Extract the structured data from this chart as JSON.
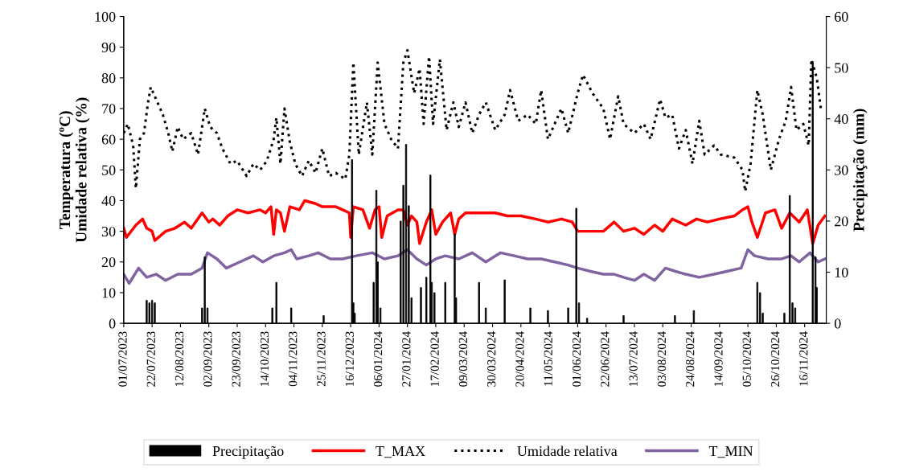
{
  "chart_data": {
    "type": "line",
    "ylabel": "Temperatura (ºC)\nUmidade relativa (%)",
    "y2label": "Precipitação (mm)",
    "xlim": [
      "2023-07-01",
      "2024-12-02"
    ],
    "xticks": [
      {
        "value": "2023-07-01",
        "label": "01/07/2023"
      },
      {
        "value": "2023-07-22",
        "label": "22/07/2023"
      },
      {
        "value": "2023-08-12",
        "label": "12/08/2023"
      },
      {
        "value": "2023-09-02",
        "label": "02/09/2023"
      },
      {
        "value": "2023-09-23",
        "label": "23/09/2023"
      },
      {
        "value": "2023-10-14",
        "label": "14/10/2023"
      },
      {
        "value": "2023-11-04",
        "label": "04/11/2023"
      },
      {
        "value": "2023-11-25",
        "label": "25/11/2023"
      },
      {
        "value": "2023-12-16",
        "label": "16/12/2023"
      },
      {
        "value": "2024-01-06",
        "label": "06/01/2024"
      },
      {
        "value": "2024-01-27",
        "label": "27/01/2024"
      },
      {
        "value": "2024-02-17",
        "label": "17/02/2024"
      },
      {
        "value": "2024-03-09",
        "label": "09/03/2024"
      },
      {
        "value": "2024-03-30",
        "label": "30/03/2024"
      },
      {
        "value": "2024-04-20",
        "label": "20/04/2024"
      },
      {
        "value": "2024-05-11",
        "label": "11/05/2024"
      },
      {
        "value": "2024-06-01",
        "label": "01/06/2024"
      },
      {
        "value": "2024-06-22",
        "label": "22/06/2024"
      },
      {
        "value": "2024-07-13",
        "label": "13/07/2024"
      },
      {
        "value": "2024-08-03",
        "label": "03/08/2024"
      },
      {
        "value": "2024-08-24",
        "label": "24/08/2024"
      },
      {
        "value": "2024-09-14",
        "label": "14/09/2024"
      },
      {
        "value": "2024-10-05",
        "label": "05/10/2024"
      },
      {
        "value": "2024-10-26",
        "label": "26/10/2024"
      },
      {
        "value": "2024-11-16",
        "label": "16/11/2024"
      }
    ],
    "ylim": [
      0,
      100
    ],
    "yticks": [
      0,
      10,
      20,
      30,
      40,
      50,
      60,
      70,
      80,
      90,
      100
    ],
    "y2lim": [
      0,
      60
    ],
    "y2ticks": [
      0,
      10,
      20,
      30,
      40,
      50,
      60
    ],
    "grid": false,
    "legend": "bottom",
    "marker": "none",
    "series": [
      {
        "name": "Precipitação",
        "type": "bar",
        "axis": "y2",
        "color": "#000000",
        "x": [
          "2023-07-18",
          "2023-07-20",
          "2023-07-22",
          "2023-07-24",
          "2023-08-28",
          "2023-08-30",
          "2023-09-01",
          "2023-10-19",
          "2023-10-22",
          "2023-11-02",
          "2023-11-26",
          "2023-12-17",
          "2023-12-18",
          "2023-12-19",
          "2024-01-02",
          "2024-01-04",
          "2024-01-05",
          "2024-01-07",
          "2024-01-22",
          "2024-01-24",
          "2024-01-26",
          "2024-01-28",
          "2024-01-30",
          "2024-02-06",
          "2024-02-10",
          "2024-02-13",
          "2024-02-14",
          "2024-02-16",
          "2024-02-24",
          "2024-03-02",
          "2024-03-03",
          "2024-03-20",
          "2024-03-25",
          "2024-04-08",
          "2024-04-27",
          "2024-05-10",
          "2024-05-25",
          "2024-05-31",
          "2024-06-02",
          "2024-06-08",
          "2024-07-05",
          "2024-08-12",
          "2024-08-26",
          "2024-10-12",
          "2024-10-14",
          "2024-10-16",
          "2024-11-01",
          "2024-11-05",
          "2024-11-07",
          "2024-11-09",
          "2024-11-22",
          "2024-11-24",
          "2024-11-25"
        ],
        "values": [
          4.5,
          4,
          4.5,
          4,
          3,
          13,
          3,
          3,
          8,
          3,
          1.5,
          32,
          4,
          2,
          8,
          26,
          12,
          3,
          20,
          27,
          35,
          23,
          5,
          7,
          9,
          29,
          8,
          6,
          8,
          17.5,
          5,
          8,
          3,
          8.5,
          3,
          2.5,
          3,
          22.5,
          4,
          1,
          1.5,
          1.5,
          2.5,
          8,
          6,
          2,
          2,
          25,
          4,
          3,
          51,
          13,
          7
        ]
      },
      {
        "name": "T_MAX",
        "color": "#ff0000",
        "line_style": "solid",
        "x": [
          "2023-07-01",
          "2023-07-03",
          "2023-07-10",
          "2023-07-15",
          "2023-07-18",
          "2023-07-22",
          "2023-07-24",
          "2023-08-01",
          "2023-08-08",
          "2023-08-15",
          "2023-08-20",
          "2023-08-28",
          "2023-09-02",
          "2023-09-05",
          "2023-09-10",
          "2023-09-16",
          "2023-09-23",
          "2023-10-01",
          "2023-10-10",
          "2023-10-14",
          "2023-10-18",
          "2023-10-20",
          "2023-10-22",
          "2023-10-25",
          "2023-10-28",
          "2023-11-01",
          "2023-11-08",
          "2023-11-12",
          "2023-11-20",
          "2023-11-25",
          "2023-12-05",
          "2023-12-10",
          "2023-12-15",
          "2023-12-16",
          "2023-12-18",
          "2023-12-25",
          "2023-12-30",
          "2024-01-03",
          "2024-01-06",
          "2024-01-08",
          "2024-01-12",
          "2024-01-20",
          "2024-01-24",
          "2024-01-27",
          "2024-01-30",
          "2024-02-03",
          "2024-02-05",
          "2024-02-10",
          "2024-02-14",
          "2024-02-17",
          "2024-02-22",
          "2024-02-28",
          "2024-03-02",
          "2024-03-05",
          "2024-03-10",
          "2024-03-20",
          "2024-04-01",
          "2024-04-10",
          "2024-04-20",
          "2024-05-01",
          "2024-05-10",
          "2024-05-20",
          "2024-05-28",
          "2024-06-01",
          "2024-06-10",
          "2024-06-20",
          "2024-06-28",
          "2024-07-05",
          "2024-07-13",
          "2024-07-20",
          "2024-07-28",
          "2024-08-03",
          "2024-08-10",
          "2024-08-20",
          "2024-08-28",
          "2024-09-05",
          "2024-09-14",
          "2024-09-25",
          "2024-10-01",
          "2024-10-05",
          "2024-10-08",
          "2024-10-12",
          "2024-10-18",
          "2024-10-25",
          "2024-10-30",
          "2024-11-05",
          "2024-11-12",
          "2024-11-18",
          "2024-11-22",
          "2024-11-26",
          "2024-12-01"
        ],
        "values": [
          31,
          28,
          32,
          34,
          31,
          30,
          27,
          30,
          31,
          33,
          31,
          36,
          33,
          34,
          32,
          35,
          37,
          36,
          37,
          36,
          38,
          29,
          37,
          36,
          30,
          38,
          37,
          40,
          39,
          38,
          38,
          37,
          36,
          28,
          38,
          37,
          31,
          37,
          38,
          28,
          35,
          37,
          37,
          32,
          35,
          33,
          26,
          33,
          37,
          29,
          33,
          36,
          29,
          34,
          36,
          36,
          36,
          35,
          35,
          34,
          33,
          34,
          33,
          30,
          30,
          30,
          33,
          30,
          31,
          29,
          32,
          30,
          34,
          32,
          34,
          33,
          34,
          35,
          37,
          38,
          33,
          28,
          36,
          37,
          31,
          36,
          33,
          37,
          26,
          32,
          35
        ]
      },
      {
        "name": "Umidade relativa",
        "color": "#000000",
        "line_style": "dotted",
        "x": [
          "2023-07-01",
          "2023-07-04",
          "2023-07-08",
          "2023-07-10",
          "2023-07-13",
          "2023-07-16",
          "2023-07-19",
          "2023-07-21",
          "2023-07-25",
          "2023-07-30",
          "2023-08-03",
          "2023-08-06",
          "2023-08-10",
          "2023-08-14",
          "2023-08-20",
          "2023-08-25",
          "2023-08-30",
          "2023-09-03",
          "2023-09-08",
          "2023-09-12",
          "2023-09-18",
          "2023-09-23",
          "2023-09-30",
          "2023-10-05",
          "2023-10-10",
          "2023-10-15",
          "2023-10-20",
          "2023-10-22",
          "2023-10-25",
          "2023-10-28",
          "2023-11-01",
          "2023-11-05",
          "2023-11-10",
          "2023-11-15",
          "2023-11-20",
          "2023-11-25",
          "2023-11-30",
          "2023-12-05",
          "2023-12-12",
          "2023-12-15",
          "2023-12-18",
          "2023-12-22",
          "2023-12-28",
          "2024-01-01",
          "2024-01-05",
          "2024-01-10",
          "2024-01-15",
          "2024-01-20",
          "2024-01-24",
          "2024-01-27",
          "2024-02-01",
          "2024-02-05",
          "2024-02-08",
          "2024-02-12",
          "2024-02-15",
          "2024-02-20",
          "2024-02-25",
          "2024-03-01",
          "2024-03-05",
          "2024-03-10",
          "2024-03-15",
          "2024-03-20",
          "2024-03-25",
          "2024-04-01",
          "2024-04-08",
          "2024-04-12",
          "2024-04-18",
          "2024-04-25",
          "2024-05-01",
          "2024-05-05",
          "2024-05-10",
          "2024-05-15",
          "2024-05-20",
          "2024-05-25",
          "2024-06-01",
          "2024-06-05",
          "2024-06-12",
          "2024-06-20",
          "2024-06-25",
          "2024-07-01",
          "2024-07-05",
          "2024-07-13",
          "2024-07-20",
          "2024-07-25",
          "2024-08-01",
          "2024-08-05",
          "2024-08-10",
          "2024-08-15",
          "2024-08-20",
          "2024-08-25",
          "2024-08-30",
          "2024-09-03",
          "2024-09-10",
          "2024-09-15",
          "2024-09-25",
          "2024-10-01",
          "2024-10-03",
          "2024-10-07",
          "2024-10-12",
          "2024-10-16",
          "2024-10-22",
          "2024-10-28",
          "2024-11-02",
          "2024-11-06",
          "2024-11-10",
          "2024-11-15",
          "2024-11-19",
          "2024-11-21",
          "2024-11-25",
          "2024-11-28"
        ],
        "values": [
          62,
          65,
          58,
          44,
          60,
          62,
          72,
          77,
          73,
          68,
          62,
          56,
          64,
          60,
          62,
          55,
          70,
          64,
          62,
          57,
          52,
          53,
          48,
          52,
          50,
          53,
          60,
          67,
          52,
          70,
          59,
          52,
          48,
          53,
          49,
          57,
          48,
          49,
          47,
          55,
          85,
          55,
          72,
          55,
          85,
          65,
          60,
          57,
          85,
          89,
          75,
          83,
          65,
          87,
          65,
          86,
          63,
          72,
          64,
          72,
          62,
          68,
          72,
          63,
          68,
          76,
          66,
          68,
          65,
          76,
          60,
          65,
          70,
          62,
          75,
          81,
          75,
          70,
          60,
          74,
          65,
          62,
          65,
          60,
          73,
          67,
          68,
          57,
          63,
          52,
          66,
          55,
          58,
          55,
          54,
          50,
          43,
          52,
          76,
          68,
          50,
          60,
          66,
          77,
          63,
          65,
          58,
          86,
          80,
          70
        ]
      },
      {
        "name": "T_MIN",
        "color": "#8064a2",
        "line_style": "solid",
        "x": [
          "2023-07-01",
          "2023-07-05",
          "2023-07-12",
          "2023-07-18",
          "2023-07-25",
          "2023-08-01",
          "2023-08-10",
          "2023-08-20",
          "2023-08-28",
          "2023-09-01",
          "2023-09-08",
          "2023-09-15",
          "2023-09-25",
          "2023-10-05",
          "2023-10-12",
          "2023-10-20",
          "2023-10-28",
          "2023-11-02",
          "2023-11-06",
          "2023-11-15",
          "2023-11-22",
          "2023-12-01",
          "2023-12-10",
          "2023-12-20",
          "2024-01-01",
          "2024-01-10",
          "2024-01-20",
          "2024-01-27",
          "2024-02-03",
          "2024-02-10",
          "2024-02-17",
          "2024-02-24",
          "2024-03-05",
          "2024-03-15",
          "2024-03-25",
          "2024-04-05",
          "2024-04-15",
          "2024-04-25",
          "2024-05-05",
          "2024-05-15",
          "2024-05-25",
          "2024-06-01",
          "2024-06-10",
          "2024-06-20",
          "2024-06-28",
          "2024-07-05",
          "2024-07-13",
          "2024-07-20",
          "2024-07-28",
          "2024-08-05",
          "2024-08-12",
          "2024-08-20",
          "2024-08-30",
          "2024-09-10",
          "2024-09-20",
          "2024-09-30",
          "2024-10-05",
          "2024-10-10",
          "2024-10-20",
          "2024-10-30",
          "2024-11-06",
          "2024-11-12",
          "2024-11-20",
          "2024-11-26",
          "2024-12-01"
        ],
        "values": [
          16,
          13,
          18,
          15,
          16,
          14,
          16,
          16,
          18,
          23,
          21,
          18,
          20,
          22,
          20,
          22,
          23,
          24,
          21,
          22,
          23,
          21,
          21,
          22,
          23,
          21,
          22,
          24,
          21,
          19,
          21,
          22,
          21,
          23,
          20,
          23,
          22,
          21,
          21,
          20,
          19,
          18,
          17,
          16,
          16,
          15,
          14,
          16,
          14,
          18,
          17,
          16,
          15,
          16,
          17,
          18,
          24,
          22,
          21,
          21,
          22,
          20,
          23,
          20,
          21
        ]
      }
    ]
  }
}
